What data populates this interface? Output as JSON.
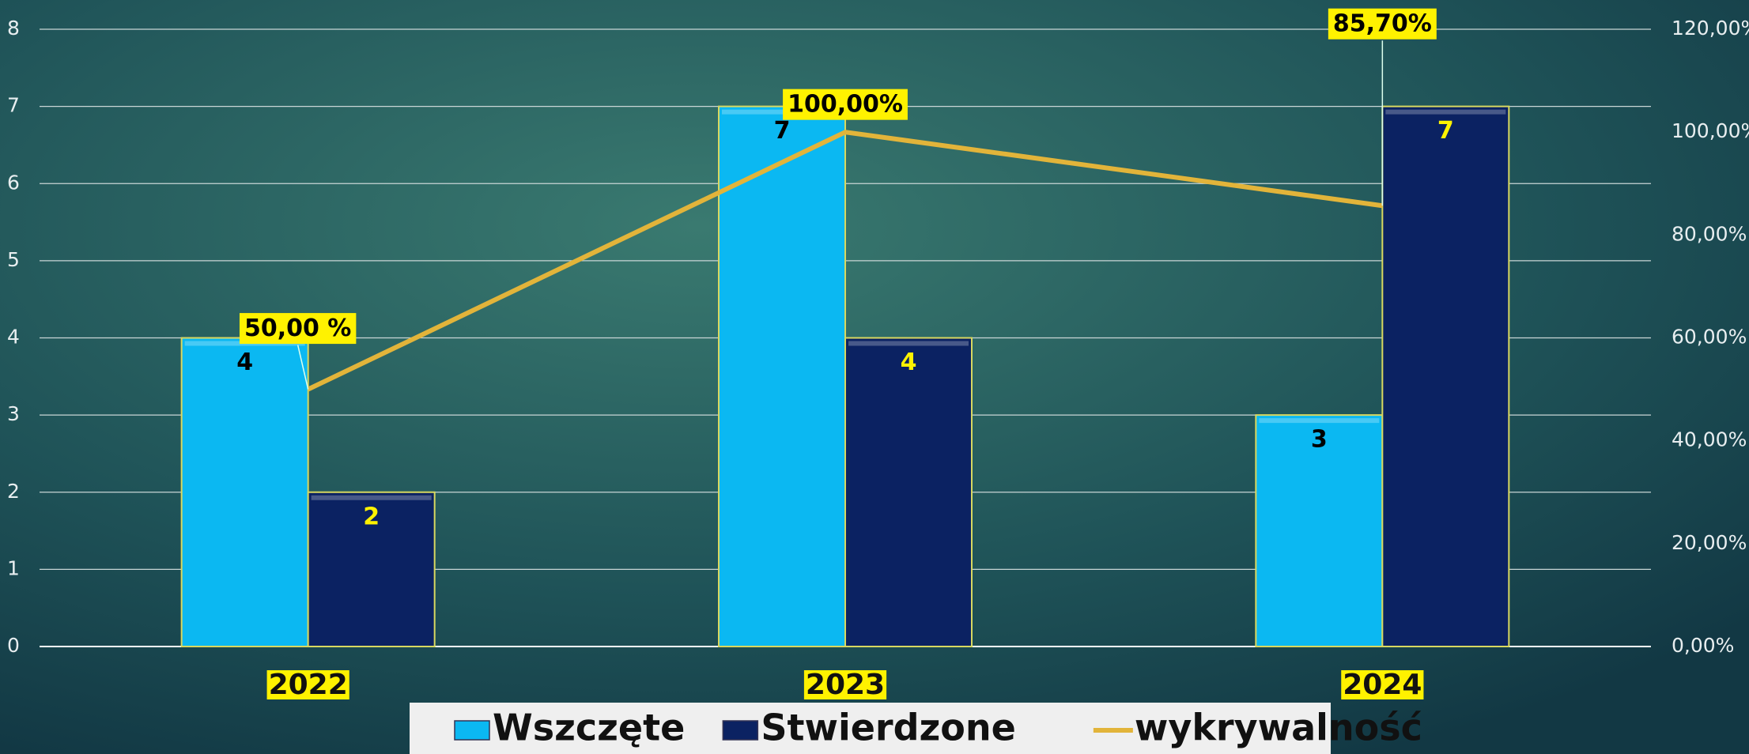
{
  "chart_data": {
    "type": "bar",
    "categories": [
      "2022",
      "2023",
      "2024"
    ],
    "series": [
      {
        "name": "Wszczęte",
        "color": "#0bb8f2",
        "values": [
          4,
          7,
          3
        ]
      },
      {
        "name": "Stwierdzone",
        "color": "#0b2262",
        "values": [
          2,
          4,
          7
        ]
      },
      {
        "name": "wykrywalność",
        "type": "line",
        "axis": "y2",
        "color": "#e2b43a",
        "values": [
          50,
          100,
          85.7
        ],
        "value_labels": [
          "50,00 %",
          "100,00%",
          "85,70%"
        ]
      }
    ],
    "ylim": [
      0,
      8
    ],
    "yticks": [
      0,
      1,
      2,
      3,
      4,
      5,
      6,
      7,
      8
    ],
    "y2lim": [
      0,
      120
    ],
    "y2ticks": [
      {
        "value": 0,
        "label": "0,00%"
      },
      {
        "value": 20,
        "label": "20,00%"
      },
      {
        "value": 40,
        "label": "40,00%"
      },
      {
        "value": 60,
        "label": "60,00%"
      },
      {
        "value": 80,
        "label": "80,00%"
      },
      {
        "value": 100,
        "label": "100,00%"
      },
      {
        "value": 120,
        "label": "120,00%"
      }
    ],
    "grid": true,
    "legend": "bottom"
  }
}
